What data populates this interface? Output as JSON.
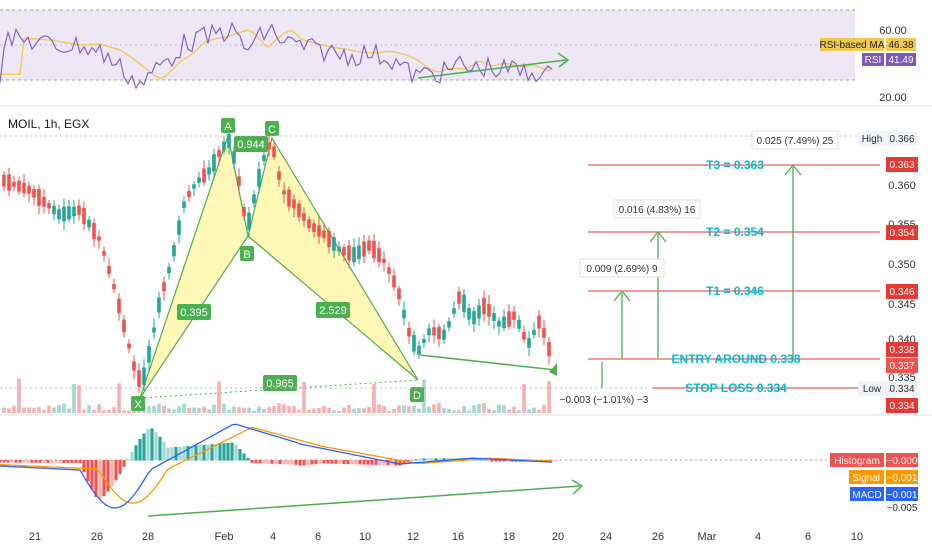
{
  "symbol": {
    "name": "MOIL",
    "timeframe": "1h",
    "exchange": "EGX"
  },
  "colors": {
    "up": "#26a69a",
    "down": "#ef5350",
    "rsi": "#7e57c2",
    "rsi_ma": "#f2c94c",
    "rsi_band": "#ede7f6",
    "macd": "#2962ff",
    "signal": "#ff9800",
    "pattern_fill": "#fff59d",
    "pattern_edge": "#4caf50",
    "target_line": "#e53935",
    "level_text": "#00bcd4",
    "arrow": "#4caf50"
  },
  "rsi_panel": {
    "legend": [
      {
        "label": "RSI-based MA",
        "value": "46.38"
      },
      {
        "label": "RSI",
        "value": "41.49"
      }
    ],
    "axis_ticks": [
      "60.00",
      "20.00"
    ]
  },
  "price_axis_ticks": [
    "0.360",
    "0.355",
    "0.350",
    "0.345",
    "0.340",
    "0.335"
  ],
  "price_tags": {
    "high_label": "High",
    "high_value": "0.366",
    "low_label": "Low",
    "low_value": "0.334",
    "t3": "0.363",
    "t2": "0.354",
    "t1": "0.346",
    "entry": "0.338",
    "last": "0.337",
    "stop": "0.334"
  },
  "levels": {
    "t3": "T3 = 0.363",
    "t2": "T2 = 0.354",
    "t1": "T1 = 0.346",
    "entry": "ENTRY AROUND 0.338",
    "stop": "STOP LOSS 0.334"
  },
  "measure_labels": {
    "t3": "0.025 (7.49%) 25",
    "t2": "0.016 (4.83%) 16",
    "t1": "0.009 (2.69%) 9",
    "stop": "−0.003 (−1.01%) −3"
  },
  "pattern": {
    "points": [
      "X",
      "A",
      "B",
      "C",
      "D"
    ],
    "ratios": [
      "0.395",
      "0.944",
      "2.529",
      "0.965"
    ]
  },
  "macd_legend": [
    {
      "label": "Histogram",
      "value": "−0.000"
    },
    {
      "label": "Signal",
      "value": "−0.001"
    },
    {
      "label": "MACD",
      "value": "−0.001"
    }
  ],
  "macd_axis_tick": "−0.005",
  "time_axis": [
    "21",
    "26",
    "28",
    "Feb",
    "4",
    "6",
    "10",
    "12",
    "16",
    "18",
    "20",
    "24",
    "26",
    "Mar",
    "4",
    "6",
    "10"
  ],
  "chart_data": {
    "type": "candlestick",
    "description_levels": {
      "T3": 0.363,
      "T2": 0.354,
      "T1": 0.346,
      "ENTRY": 0.338,
      "STOP": 0.334
    },
    "harmonic_points": [
      {
        "label": "X",
        "price": 0.334
      },
      {
        "label": "A",
        "price": 0.366
      },
      {
        "label": "B",
        "price": 0.353
      },
      {
        "label": "C",
        "price": 0.365
      },
      {
        "label": "D",
        "price": 0.335
      }
    ],
    "high": 0.366,
    "low": 0.334,
    "last": 0.337,
    "rsi": {
      "value": 41.49,
      "ma": 46.38,
      "ylim": [
        20,
        80
      ]
    },
    "macd": {
      "histogram": -0.0,
      "signal": -0.001,
      "macd": -0.001
    },
    "ylim": [
      0.333,
      0.368
    ]
  }
}
